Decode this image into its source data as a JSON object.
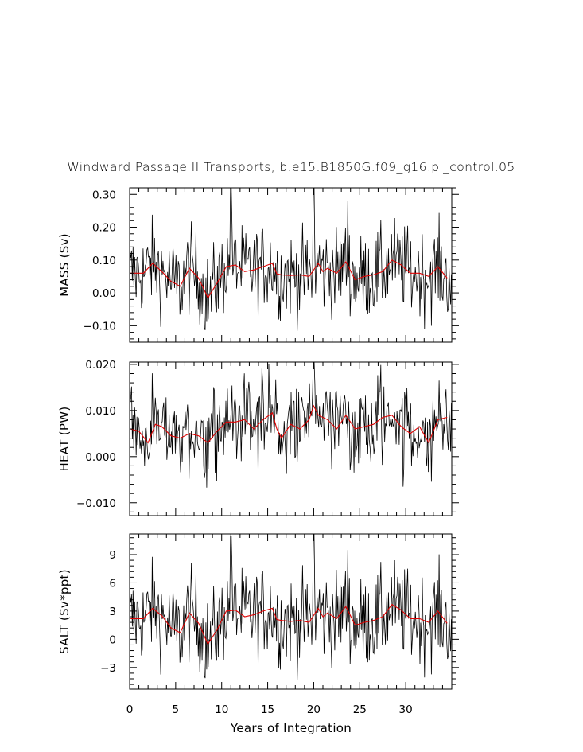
{
  "title": "Windward Passage II Transports, b.e15.B1850G.f09_g16.pi_control.05",
  "xlabel": "Years of Integration",
  "colors": {
    "raw": "#000000",
    "smooth": "#e00000",
    "axes": "#000000"
  },
  "chart_data": [
    {
      "type": "line",
      "ylabel": "MASS (Sv)",
      "xlim": [
        0,
        35
      ],
      "ylim": [
        -0.15,
        0.32
      ],
      "x_ticks": [
        0,
        5,
        10,
        15,
        20,
        25,
        30
      ],
      "y_ticks": [
        -0.1,
        0.0,
        0.1,
        0.2,
        0.3
      ],
      "y_tick_labels": [
        "−0.10",
        "0.00",
        "0.10",
        "0.20",
        "0.30"
      ],
      "x_tick_labels_shown": false,
      "raw_series": {
        "name": "",
        "stats": {
          "mean": 0.06,
          "sd": 0.065
        }
      },
      "smooth_series": {
        "name": "",
        "x": [
          0.1,
          1.0,
          1.5,
          2.5,
          3.5,
          4.5,
          5.5,
          6.5,
          7.5,
          8.5,
          9.5,
          10.5,
          11.5,
          12.5,
          13.5,
          14.5,
          15.5,
          16.0,
          16.5,
          17.5,
          18.5,
          19.5,
          20.5,
          21.0,
          21.5,
          22.5,
          23.5,
          24.5,
          25.5,
          26.5,
          27.5,
          28.5,
          29.5,
          30.5,
          31.5,
          32.5,
          33.5,
          34.5
        ],
        "y": [
          0.06,
          0.06,
          0.06,
          0.09,
          0.065,
          0.035,
          0.02,
          0.075,
          0.045,
          -0.015,
          0.03,
          0.08,
          0.085,
          0.065,
          0.07,
          0.08,
          0.09,
          0.058,
          0.055,
          0.053,
          0.055,
          0.05,
          0.09,
          0.065,
          0.075,
          0.06,
          0.095,
          0.04,
          0.05,
          0.055,
          0.065,
          0.1,
          0.085,
          0.06,
          0.06,
          0.05,
          0.08,
          0.045
        ]
      },
      "peaks": [
        [
          11.0,
          0.32
        ],
        [
          20.0,
          0.33
        ],
        [
          23.7,
          0.28
        ]
      ]
    },
    {
      "type": "line",
      "ylabel": "HEAT (PW)",
      "xlim": [
        0,
        35
      ],
      "ylim": [
        -0.0128,
        0.0205
      ],
      "x_ticks": [
        0,
        5,
        10,
        15,
        20,
        25,
        30
      ],
      "y_ticks": [
        -0.01,
        0.0,
        0.01,
        0.02
      ],
      "y_tick_labels": [
        "−0.010",
        "0.000",
        "0.010",
        "0.020"
      ],
      "x_tick_labels_shown": false,
      "raw_series": {
        "name": "",
        "stats": {
          "mean": 0.0065,
          "sd": 0.0045
        }
      },
      "smooth_series": {
        "name": "",
        "x": [
          0.1,
          1.0,
          2.0,
          2.8,
          3.5,
          4.5,
          5.5,
          6.5,
          7.5,
          8.5,
          9.5,
          10.5,
          11.5,
          12.5,
          13.5,
          14.5,
          15.5,
          16.0,
          16.5,
          17.5,
          18.5,
          19.5,
          20.0,
          20.5,
          21.5,
          22.5,
          23.5,
          24.5,
          25.5,
          26.5,
          27.5,
          28.5,
          29.5,
          30.5,
          31.5,
          32.5,
          33.5,
          34.5
        ],
        "y": [
          0.006,
          0.0055,
          0.003,
          0.007,
          0.0065,
          0.0045,
          0.004,
          0.005,
          0.0045,
          0.003,
          0.0055,
          0.0075,
          0.0075,
          0.008,
          0.006,
          0.008,
          0.0095,
          0.006,
          0.004,
          0.007,
          0.006,
          0.008,
          0.011,
          0.009,
          0.008,
          0.006,
          0.009,
          0.006,
          0.0065,
          0.007,
          0.0085,
          0.009,
          0.0065,
          0.005,
          0.0065,
          0.003,
          0.008,
          0.0085
        ]
      },
      "peaks": [
        [
          15.1,
          0.02
        ],
        [
          20.0,
          0.021
        ],
        [
          33.6,
          0.0165
        ]
      ]
    },
    {
      "type": "line",
      "ylabel": "SALT (Sv*ppt)",
      "xlim": [
        0,
        35
      ],
      "ylim": [
        -5.3,
        11.2
      ],
      "x_ticks": [
        0,
        5,
        10,
        15,
        20,
        25,
        30
      ],
      "y_ticks": [
        -3,
        0,
        3,
        6,
        9
      ],
      "y_tick_labels": [
        "−3",
        "0",
        "3",
        "6",
        "9"
      ],
      "x_tick_labels": [
        "0",
        "5",
        "10",
        "15",
        "20",
        "25",
        "30"
      ],
      "x_tick_labels_shown": true,
      "raw_series": {
        "name": "",
        "stats": {
          "mean": 2.3,
          "sd": 2.4
        }
      },
      "smooth_series": {
        "name": "",
        "x": [
          0.1,
          1.0,
          1.5,
          2.5,
          3.5,
          4.5,
          5.5,
          6.5,
          7.5,
          8.5,
          9.5,
          10.5,
          11.5,
          12.5,
          13.5,
          14.5,
          15.5,
          16.0,
          16.5,
          17.5,
          18.5,
          19.5,
          20.5,
          21.0,
          21.5,
          22.5,
          23.5,
          24.5,
          25.5,
          26.5,
          27.5,
          28.5,
          29.5,
          30.5,
          31.5,
          32.5,
          33.5,
          34.5
        ],
        "y": [
          2.2,
          2.2,
          2.2,
          3.3,
          2.5,
          1.2,
          0.7,
          2.8,
          1.7,
          -0.5,
          1.0,
          3.0,
          3.1,
          2.4,
          2.6,
          3.0,
          3.3,
          2.1,
          2.0,
          1.9,
          2.0,
          1.8,
          3.3,
          2.4,
          2.8,
          2.2,
          3.5,
          1.5,
          1.8,
          2.0,
          2.4,
          3.7,
          3.1,
          2.2,
          2.2,
          1.8,
          3.0,
          1.7
        ]
      },
      "peaks": [
        [
          11.0,
          11.0
        ],
        [
          20.0,
          11.3
        ],
        [
          23.7,
          9.5
        ]
      ]
    }
  ]
}
